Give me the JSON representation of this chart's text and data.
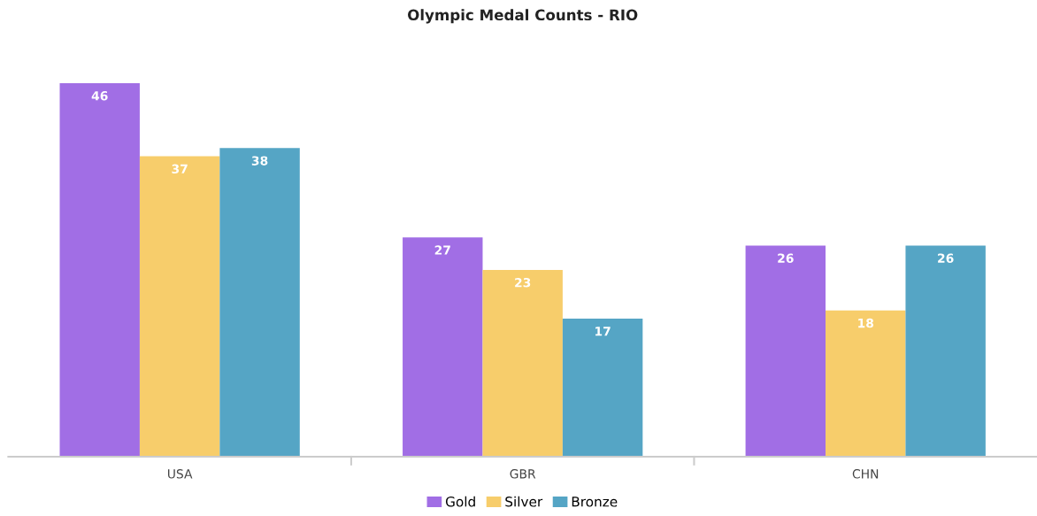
{
  "chart_data": {
    "type": "bar",
    "title": "Olympic Medal Counts - RIO",
    "categories": [
      "USA",
      "GBR",
      "CHN"
    ],
    "series": [
      {
        "name": "Gold",
        "color": "#a16ee5",
        "values": [
          46,
          27,
          26
        ]
      },
      {
        "name": "Silver",
        "color": "#f7cd6b",
        "values": [
          37,
          23,
          18
        ]
      },
      {
        "name": "Bronze",
        "color": "#55a5c5",
        "values": [
          38,
          17,
          26
        ]
      }
    ],
    "data_labels": true,
    "legend": "bottom",
    "grid": false
  }
}
